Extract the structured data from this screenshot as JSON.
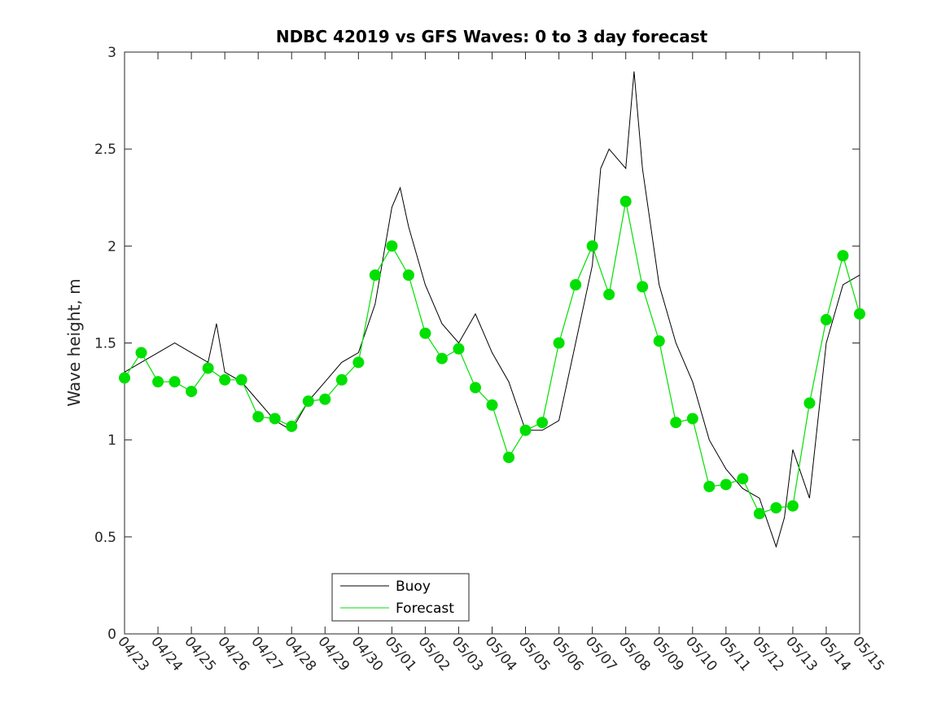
{
  "chart_data": {
    "type": "line",
    "title": "NDBC 42019 vs GFS Waves: 0 to 3 day forecast",
    "xlabel": "",
    "ylabel": "Wave height, m",
    "xlim": [
      "04/23",
      "05/15"
    ],
    "ylim": [
      0,
      3
    ],
    "x_ticks": [
      "04/23",
      "04/24",
      "04/25",
      "04/26",
      "04/27",
      "04/28",
      "04/29",
      "04/30",
      "05/01",
      "05/02",
      "05/03",
      "05/04",
      "05/05",
      "05/06",
      "05/07",
      "05/08",
      "05/09",
      "05/10",
      "05/11",
      "05/12",
      "05/13",
      "05/14",
      "05/15"
    ],
    "y_ticks": [
      0,
      0.5,
      1,
      1.5,
      2,
      2.5,
      3
    ],
    "y_tick_labels": [
      "0",
      "0.5",
      "1",
      "1.5",
      "2",
      "2.5",
      "3"
    ],
    "grid": false,
    "legend": {
      "position": "bottom-center",
      "entries": [
        "Buoy",
        "Forecast"
      ]
    },
    "colors": {
      "buoy": "#000000",
      "forecast": "#00e000"
    },
    "series": [
      {
        "name": "Buoy",
        "x": [
          "04/23 00:00",
          "04/23 12:00",
          "04/24 00:00",
          "04/24 12:00",
          "04/25 00:00",
          "04/25 12:00",
          "04/25 18:00",
          "04/26 00:00",
          "04/26 12:00",
          "04/27 00:00",
          "04/27 12:00",
          "04/28 00:00",
          "04/28 12:00",
          "04/29 00:00",
          "04/29 12:00",
          "04/30 00:00",
          "04/30 12:00",
          "05/01 00:00",
          "05/01 06:00",
          "05/01 12:00",
          "05/02 00:00",
          "05/02 12:00",
          "05/03 00:00",
          "05/03 12:00",
          "05/04 00:00",
          "05/04 12:00",
          "05/05 00:00",
          "05/05 12:00",
          "05/06 00:00",
          "05/06 12:00",
          "05/07 00:00",
          "05/07 06:00",
          "05/07 12:00",
          "05/08 00:00",
          "05/08 06:00",
          "05/08 12:00",
          "05/09 00:00",
          "05/09 12:00",
          "05/10 00:00",
          "05/10 12:00",
          "05/11 00:00",
          "05/11 12:00",
          "05/12 00:00",
          "05/12 12:00",
          "05/12 18:00",
          "05/13 00:00",
          "05/13 12:00",
          "05/14 00:00",
          "05/14 12:00",
          "05/15 00:00"
        ],
        "y": [
          1.35,
          1.4,
          1.45,
          1.5,
          1.45,
          1.4,
          1.6,
          1.35,
          1.3,
          1.2,
          1.1,
          1.05,
          1.2,
          1.3,
          1.4,
          1.45,
          1.7,
          2.2,
          2.3,
          2.1,
          1.8,
          1.6,
          1.5,
          1.65,
          1.45,
          1.3,
          1.05,
          1.05,
          1.1,
          1.5,
          1.9,
          2.4,
          2.5,
          2.4,
          2.9,
          2.4,
          1.8,
          1.5,
          1.3,
          1.0,
          0.85,
          0.75,
          0.7,
          0.45,
          0.6,
          0.95,
          0.7,
          1.5,
          1.8,
          1.85
        ]
      },
      {
        "name": "Forecast",
        "x": [
          "04/23 00:00",
          "04/23 12:00",
          "04/24 00:00",
          "04/24 12:00",
          "04/25 00:00",
          "04/25 12:00",
          "04/26 00:00",
          "04/26 12:00",
          "04/27 00:00",
          "04/27 12:00",
          "04/28 00:00",
          "04/28 12:00",
          "04/29 00:00",
          "04/29 12:00",
          "04/30 00:00",
          "04/30 12:00",
          "05/01 00:00",
          "05/01 12:00",
          "05/02 00:00",
          "05/02 12:00",
          "05/03 00:00",
          "05/03 12:00",
          "05/04 00:00",
          "05/04 12:00",
          "05/05 00:00",
          "05/05 12:00",
          "05/06 00:00",
          "05/06 12:00",
          "05/07 00:00",
          "05/07 12:00",
          "05/08 00:00",
          "05/08 12:00",
          "05/09 00:00",
          "05/09 12:00",
          "05/10 00:00",
          "05/10 12:00",
          "05/11 00:00",
          "05/11 12:00",
          "05/12 00:00",
          "05/12 12:00",
          "05/13 00:00",
          "05/13 12:00",
          "05/14 00:00",
          "05/14 12:00",
          "05/15 00:00"
        ],
        "y": [
          1.32,
          1.45,
          1.3,
          1.3,
          1.25,
          1.37,
          1.31,
          1.31,
          1.12,
          1.11,
          1.07,
          1.2,
          1.21,
          1.31,
          1.4,
          1.85,
          2.0,
          1.85,
          1.55,
          1.42,
          1.47,
          1.27,
          1.18,
          0.91,
          1.05,
          1.09,
          1.5,
          1.8,
          2.0,
          1.75,
          2.23,
          1.79,
          1.51,
          1.09,
          1.11,
          0.76,
          0.77,
          0.8,
          0.62,
          0.65,
          0.66,
          1.19,
          1.62,
          1.95,
          1.65
        ]
      }
    ]
  }
}
